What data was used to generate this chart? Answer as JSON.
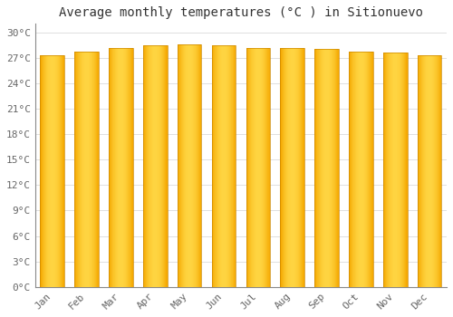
{
  "title": "Average monthly temperatures (°C ) in Sitionuevo",
  "months": [
    "Jan",
    "Feb",
    "Mar",
    "Apr",
    "May",
    "Jun",
    "Jul",
    "Aug",
    "Sep",
    "Oct",
    "Nov",
    "Dec"
  ],
  "values": [
    27.3,
    27.7,
    28.1,
    28.5,
    28.6,
    28.5,
    28.2,
    28.2,
    28.0,
    27.7,
    27.6,
    27.3
  ],
  "bar_color_center": "#FFD542",
  "bar_color_edge": "#F5A800",
  "bar_edge_color": "#CC8800",
  "background_color": "#FFFFFF",
  "grid_color": "#E0E0E0",
  "ylim": [
    0,
    31
  ],
  "yticks": [
    0,
    3,
    6,
    9,
    12,
    15,
    18,
    21,
    24,
    27,
    30
  ],
  "ytick_labels": [
    "0°C",
    "3°C",
    "6°C",
    "9°C",
    "12°C",
    "15°C",
    "18°C",
    "21°C",
    "24°C",
    "27°C",
    "30°C"
  ],
  "title_fontsize": 10,
  "tick_fontsize": 8,
  "font_family": "monospace",
  "bar_width": 0.7,
  "n_gradient_steps": 50
}
